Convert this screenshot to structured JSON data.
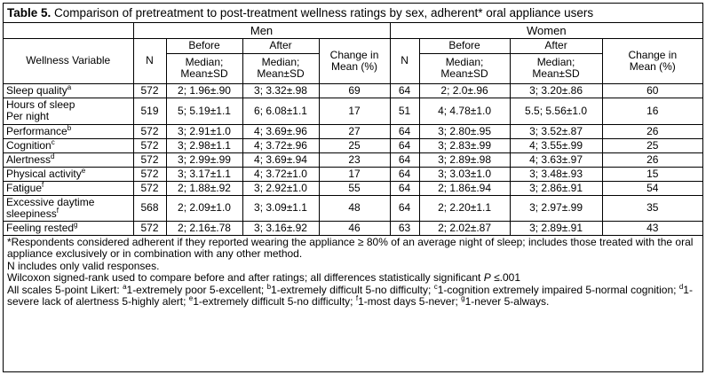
{
  "title": {
    "label": "Table 5.",
    "text": "Comparison of pretreatment to post-treatment wellness ratings by sex, adherent* oral appliance users"
  },
  "groups": {
    "men": "Men",
    "women": "Women"
  },
  "headers": {
    "variable": "Wellness Variable",
    "n": "N",
    "before": "Before",
    "after": "After",
    "median_line1": "Median;",
    "median_line2": "Mean±SD",
    "change_line1": "Change in",
    "change_line2": "Mean (%)"
  },
  "rows": [
    {
      "var1": "Sleep quality",
      "sup": "a",
      "var2": "",
      "m_n": "572",
      "m_before": "2; 1.96±.90",
      "m_after": "3; 3.32±.98",
      "m_change": "69",
      "w_n": "64",
      "w_before": "2; 2.0±.96",
      "w_after": "3; 3.20±.86",
      "w_change": "60"
    },
    {
      "var1": "Hours of sleep",
      "sup": "",
      "var2": "Per night",
      "m_n": "519",
      "m_before": "5; 5.19±1.1",
      "m_after": "6; 6.08±1.1",
      "m_change": "17",
      "w_n": "51",
      "w_before": "4; 4.78±1.0",
      "w_after": "5.5; 5.56±1.0",
      "w_change": "16"
    },
    {
      "var1": "Performance",
      "sup": "b",
      "var2": "",
      "m_n": "572",
      "m_before": "3; 2.91±1.0",
      "m_after": "4; 3.69±.96",
      "m_change": "27",
      "w_n": "64",
      "w_before": "3; 2.80±.95",
      "w_after": "3; 3.52±.87",
      "w_change": "26"
    },
    {
      "var1": "Cognition",
      "sup": "c",
      "var2": "",
      "m_n": "572",
      "m_before": "3; 2.98±1.1",
      "m_after": "4; 3.72±.96",
      "m_change": "25",
      "w_n": "64",
      "w_before": "3; 2.83±.99",
      "w_after": "4; 3.55±.99",
      "w_change": "25"
    },
    {
      "var1": "Alertness",
      "sup": "d",
      "var2": "",
      "m_n": "572",
      "m_before": "3; 2.99±.99",
      "m_after": "4; 3.69±.94",
      "m_change": "23",
      "w_n": "64",
      "w_before": "3; 2.89±.98",
      "w_after": "4; 3.63±.97",
      "w_change": "26"
    },
    {
      "var1": "Physical activity",
      "sup": "e",
      "var2": "",
      "m_n": "572",
      "m_before": "3; 3.17±1.1",
      "m_after": "4; 3.72±1.0",
      "m_change": "17",
      "w_n": "64",
      "w_before": "3; 3.03±1.0",
      "w_after": "3; 3.48±.93",
      "w_change": "15"
    },
    {
      "var1": "Fatigue",
      "sup": "f",
      "var2": "",
      "m_n": "572",
      "m_before": "2; 1.88±.92",
      "m_after": "3; 2.92±1.0",
      "m_change": "55",
      "w_n": "64",
      "w_before": "2; 1.86±.94",
      "w_after": "3; 2.86±.91",
      "w_change": "54"
    },
    {
      "var1": "Excessive daytime",
      "sup": "",
      "var2": "sleepiness",
      "sup2": "f",
      "m_n": "568",
      "m_before": "2; 2.09±1.0",
      "m_after": "3; 3.09±1.1",
      "m_change": "48",
      "w_n": "64",
      "w_before": "2; 2.20±1.1",
      "w_after": "3; 2.97±.99",
      "w_change": "35"
    },
    {
      "var1": "Feeling rested",
      "sup": "g",
      "var2": "",
      "m_n": "572",
      "m_before": "2; 2.16±.78",
      "m_after": "3; 3.16±.92",
      "m_change": "46",
      "w_n": "63",
      "w_before": "2; 2.02±.87",
      "w_after": "3; 2.89±.91",
      "w_change": "43"
    }
  ],
  "footnotes": {
    "adherent": "*Respondents considered adherent if they reported wearing the appliance ≥ 80% of an average night of sleep; includes those treated with the oral appliance exclusively or in combination with any other method.",
    "n_note": "N includes only valid responses.",
    "wilcoxon_pre": "Wilcoxon signed-rank used to compare before and after ratings; all differences statistically significant",
    "wilcoxon_p": "P",
    "wilcoxon_post": " ≤.001",
    "scales_intro": "All scales 5-point Likert: ",
    "sa": "a",
    "ta": "1-extremely poor 5-excellent; ",
    "sb": "b",
    "tb": "1-extremely difficult 5-no difficulty; ",
    "sc": "c",
    "tc": "1-cognition extremely impaired 5-normal cognition; ",
    "sd": "d",
    "td": "1-severe lack of alertness 5-highly alert; ",
    "se": "e",
    "te": "1-extremely difficult 5-no difficulty; ",
    "sf": "f",
    "tf": "1-most days 5-never; ",
    "sg": "g",
    "tg": "1-never 5-always."
  }
}
